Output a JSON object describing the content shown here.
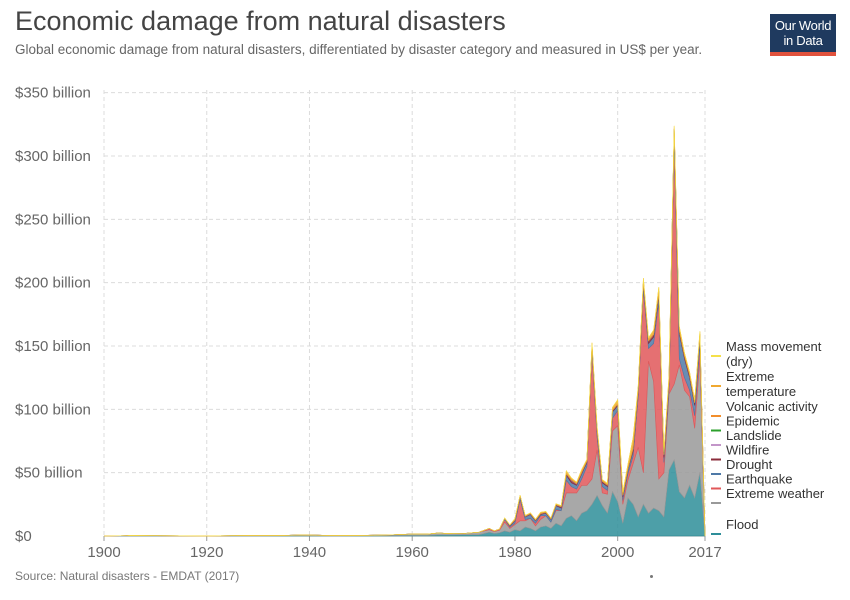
{
  "header": {
    "title": "Economic damage from natural disasters",
    "subtitle": "Global economic damage from natural disasters, differentiated by disaster category and measured in US$ per year."
  },
  "logo": {
    "line1": "Our World",
    "line2": "in Data"
  },
  "footer": {
    "source": "Source: Natural disasters - EMDAT (2017)"
  },
  "chart_data": {
    "type": "area",
    "stacked": true,
    "title": "Economic damage from natural disasters",
    "subtitle": "Global economic damage from natural disasters, differentiated by disaster category and measured in US$ per year.",
    "xlabel": "",
    "ylabel": "",
    "xlim": [
      1900,
      2017
    ],
    "ylim": [
      0,
      360
    ],
    "unit": "billion US$",
    "x_ticks": [
      "1900",
      "1920",
      "1940",
      "1960",
      "1980",
      "2000",
      "2017"
    ],
    "y_ticks": [
      "$0",
      "$50 billion",
      "$100 billion",
      "$150 billion",
      "$200 billion",
      "$250 billion",
      "$300 billion",
      "$350 billion"
    ],
    "y_tick_values": [
      0,
      50,
      100,
      150,
      200,
      250,
      300,
      350
    ],
    "grid": true,
    "legend_position": "right",
    "x": [
      1900,
      1905,
      1910,
      1920,
      1925,
      1930,
      1935,
      1938,
      1940,
      1945,
      1950,
      1955,
      1960,
      1963,
      1965,
      1968,
      1970,
      1973,
      1975,
      1976,
      1977,
      1978,
      1979,
      1980,
      1981,
      1982,
      1983,
      1984,
      1985,
      1986,
      1987,
      1988,
      1989,
      1990,
      1991,
      1992,
      1993,
      1994,
      1995,
      1996,
      1997,
      1998,
      1999,
      2000,
      2001,
      2002,
      2003,
      2004,
      2005,
      2006,
      2007,
      2008,
      2009,
      2010,
      2011,
      2012,
      2013,
      2014,
      2015,
      2016,
      2017
    ],
    "series": [
      {
        "name": "Flood",
        "color": "#2e8e99",
        "values": [
          0,
          0,
          0,
          0,
          0,
          0,
          0.2,
          0.3,
          0.2,
          0.1,
          0.2,
          0.3,
          0.5,
          0.5,
          0.8,
          0.8,
          1,
          1,
          3,
          2,
          2.5,
          4,
          3,
          5,
          4,
          7,
          6,
          4,
          7,
          8,
          6,
          10,
          8,
          14,
          16,
          12,
          18,
          20,
          25,
          32,
          24,
          18,
          35,
          27,
          10,
          30,
          25,
          15,
          25,
          18,
          22,
          20,
          15,
          52,
          60,
          35,
          30,
          40,
          30,
          50,
          0
        ]
      },
      {
        "name": "Extreme weather",
        "color": "#999999",
        "values": [
          0,
          0.3,
          0.2,
          0.1,
          0.2,
          0.5,
          0.3,
          0.5,
          0.5,
          0.2,
          0.3,
          0.5,
          1,
          1,
          1.5,
          1,
          1,
          2,
          2,
          1.5,
          2,
          7,
          3,
          4,
          8,
          5,
          8,
          4,
          6,
          8,
          5,
          10,
          12,
          20,
          18,
          22,
          22,
          20,
          20,
          36,
          10,
          15,
          48,
          60,
          15,
          14,
          32,
          55,
          25,
          120,
          100,
          25,
          35,
          60,
          60,
          100,
          85,
          70,
          55,
          90,
          0
        ]
      },
      {
        "name": "Earthquake",
        "color": "#e15759",
        "values": [
          0,
          0,
          0,
          0,
          0,
          0,
          0,
          0,
          0,
          0,
          0,
          0,
          0,
          0,
          0,
          0,
          0,
          0,
          1,
          0.5,
          1,
          2,
          1,
          1,
          17,
          1,
          0,
          2,
          3,
          0,
          0,
          1,
          0,
          10,
          5,
          3,
          5,
          15,
          100,
          10,
          5,
          3,
          10,
          12,
          3,
          5,
          6,
          40,
          145,
          10,
          30,
          140,
          8,
          3,
          190,
          5,
          10,
          5,
          10,
          10,
          0
        ]
      },
      {
        "name": "Drought",
        "color": "#4e79a7",
        "values": [
          0,
          0,
          0,
          0,
          0,
          0,
          0,
          0,
          0,
          0,
          0,
          0,
          0,
          0,
          0,
          0,
          0,
          0,
          0,
          0,
          0,
          1,
          1,
          2,
          2,
          2,
          3,
          2,
          1,
          2,
          2,
          3,
          2,
          4,
          3,
          3,
          4,
          3,
          4,
          5,
          3,
          3,
          5,
          4,
          3,
          3,
          4,
          4,
          4,
          4,
          5,
          5,
          4,
          6,
          8,
          20,
          15,
          10,
          8,
          7,
          0
        ]
      },
      {
        "name": "Wildfire",
        "color": "#8b2c3b",
        "values": [
          0,
          0,
          0,
          0,
          0,
          0,
          0,
          0,
          0,
          0,
          0,
          0,
          0,
          0,
          0,
          0,
          0,
          0,
          0,
          0,
          0,
          0,
          0.5,
          0.5,
          0.5,
          0.5,
          0.5,
          0.5,
          0.5,
          0.5,
          0.5,
          0.5,
          1,
          1,
          2,
          1,
          1,
          1,
          1,
          1,
          1,
          1,
          1,
          1,
          1,
          1,
          2,
          2,
          2,
          2,
          2,
          3,
          2,
          2,
          3,
          2,
          2,
          2,
          2,
          2,
          0
        ]
      },
      {
        "name": "Landslide",
        "color": "#c396c9",
        "values": [
          0,
          0,
          0,
          0,
          0,
          0,
          0,
          0,
          0,
          0,
          0,
          0,
          0,
          0,
          0,
          0,
          0,
          0,
          0,
          0,
          0,
          0,
          0,
          0.2,
          0.2,
          0.2,
          0.2,
          0.2,
          0.2,
          0.2,
          0.2,
          0.2,
          0.2,
          0.3,
          0.3,
          0.3,
          0.3,
          0.3,
          0.3,
          0.3,
          0.3,
          0.3,
          0.3,
          0.3,
          0.3,
          0.3,
          0.3,
          0.3,
          0.3,
          0.3,
          0.3,
          0.3,
          0.3,
          0.3,
          0.3,
          0.3,
          0.3,
          0.3,
          0.3,
          0.3,
          0
        ]
      },
      {
        "name": "Epidemic",
        "color": "#2ca02c",
        "values": [
          0,
          0,
          0,
          0,
          0,
          0,
          0,
          0,
          0,
          0,
          0,
          0,
          0,
          0,
          0,
          0,
          0,
          0,
          0,
          0,
          0,
          0,
          0,
          0,
          0,
          0,
          0,
          0,
          0,
          0,
          0,
          0,
          0,
          0,
          0,
          0,
          0,
          0,
          0,
          0,
          0,
          0,
          0,
          0,
          0,
          0,
          0,
          0,
          0,
          0,
          0,
          0,
          0,
          0,
          0,
          0,
          0,
          0,
          0,
          0,
          0
        ]
      },
      {
        "name": "Volcanic activity",
        "color": "#f28e2b",
        "values": [
          0,
          0,
          0,
          0,
          0,
          0,
          0,
          0,
          0,
          0,
          0,
          0,
          0,
          0,
          0,
          0,
          0,
          0,
          0,
          0,
          0,
          0,
          0,
          0.5,
          0.2,
          0.2,
          0.2,
          0.2,
          0.5,
          0.2,
          0.2,
          0.2,
          0.2,
          0.2,
          0.5,
          0.2,
          0.2,
          0.2,
          0.2,
          0.2,
          0.2,
          0.2,
          0.2,
          0.2,
          0.2,
          0.2,
          0.2,
          0.2,
          0.2,
          0.2,
          0.2,
          0.2,
          0.2,
          0.5,
          0.5,
          0.2,
          0.2,
          0.2,
          0.2,
          0.2,
          0
        ]
      },
      {
        "name": "Extreme temperature",
        "color": "#f0a830",
        "values": [
          0,
          0,
          0,
          0,
          0,
          0,
          0,
          0,
          0,
          0,
          0,
          0,
          0,
          0,
          0,
          0,
          0,
          0,
          0,
          0,
          0,
          0.2,
          0.2,
          0.5,
          0.3,
          0.3,
          0.3,
          0.3,
          0.5,
          0.5,
          0.3,
          0.5,
          0.5,
          2,
          1,
          1,
          2,
          1,
          2,
          2,
          1,
          1,
          2,
          3,
          2,
          3,
          8,
          2,
          2,
          2,
          3,
          3,
          2,
          3,
          2,
          3,
          2,
          2,
          2,
          2,
          0
        ]
      },
      {
        "name": "Mass movement (dry)",
        "color": "#f5e04a",
        "values": [
          0,
          0,
          0,
          0,
          0,
          0,
          0,
          0,
          0,
          0,
          0,
          0,
          0,
          0,
          0,
          0,
          0,
          0,
          0,
          0,
          0,
          0,
          0,
          0,
          0,
          0,
          0,
          0,
          0,
          0,
          0,
          0,
          0,
          0,
          0,
          0,
          0,
          0,
          0,
          0,
          0,
          0,
          0,
          0,
          0,
          0,
          0,
          0,
          0,
          0,
          0,
          0,
          0,
          0,
          0,
          0,
          0,
          0,
          0,
          0,
          0
        ]
      }
    ],
    "legend_lines": [
      {
        "series": "Mass movement (dry)",
        "lines": [
          "Mass movement",
          "(dry)"
        ]
      },
      {
        "series": "Extreme temperature",
        "lines": [
          "Extreme",
          "temperature"
        ]
      },
      {
        "series": "Volcanic activity",
        "lines": [
          "Volcanic activity"
        ]
      },
      {
        "series": "Epidemic",
        "lines": [
          "Epidemic"
        ]
      },
      {
        "series": "Landslide",
        "lines": [
          "Landslide"
        ]
      },
      {
        "series": "Wildfire",
        "lines": [
          "Wildfire"
        ]
      },
      {
        "series": "Drought",
        "lines": [
          "Drought"
        ]
      },
      {
        "series": "Earthquake",
        "lines": [
          "Earthquake"
        ]
      },
      {
        "series": "Extreme weather",
        "lines": [
          "Extreme weather"
        ]
      },
      {
        "series": "Flood",
        "lines": [
          "Flood"
        ]
      }
    ]
  }
}
